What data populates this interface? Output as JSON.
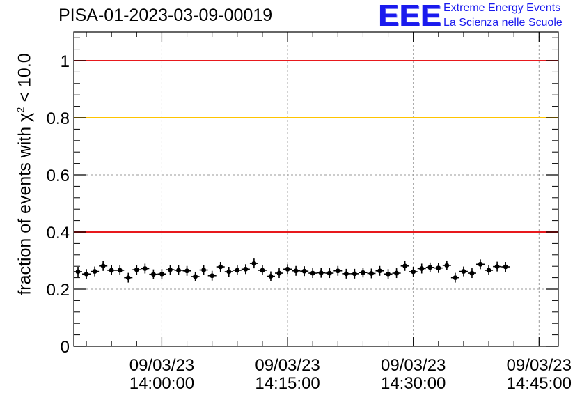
{
  "header": {
    "title": "PISA-01-2023-03-09-00019",
    "logo_mark": "EEE",
    "logo_line1": "Extreme Energy Events",
    "logo_line2": "La Scienza nelle Scuole"
  },
  "axis": {
    "ylabel_pre": "fraction of events with χ",
    "ylabel_sup": "2",
    "ylabel_post": " < 10.0"
  },
  "colors": {
    "threshold_red": "#e8191d",
    "threshold_yellow": "#ffc400",
    "points": "#000000",
    "grid": "#9a9a9a"
  },
  "chart_data": {
    "type": "scatter",
    "title": "PISA-01-2023-03-09-00019",
    "ylabel": "fraction of events with χ² < 10.0",
    "ylim": [
      0,
      1.1
    ],
    "y_ticks": [
      {
        "value": 0,
        "label": "0"
      },
      {
        "value": 0.2,
        "label": "0.2"
      },
      {
        "value": 0.4,
        "label": "0.4"
      },
      {
        "value": 0.6,
        "label": "0.6"
      },
      {
        "value": 0.8,
        "label": "0.8"
      },
      {
        "value": 1.0,
        "label": "1"
      }
    ],
    "xlim_minutes_after_1400": [
      -10.5,
      47.3
    ],
    "x_ticks": [
      {
        "minute": 0,
        "date": "09/03/23",
        "time": "14:00:00"
      },
      {
        "minute": 15,
        "date": "09/03/23",
        "time": "14:15:00"
      },
      {
        "minute": 30,
        "date": "09/03/23",
        "time": "14:30:00"
      },
      {
        "minute": 45,
        "date": "09/03/23",
        "time": "14:45:00"
      }
    ],
    "grid": true,
    "thresholds": [
      {
        "value": 1.0,
        "color": "red"
      },
      {
        "value": 0.8,
        "color": "yellow"
      },
      {
        "value": 0.4,
        "color": "red"
      }
    ],
    "point_interval_minutes": 1,
    "first_point_minute": -10,
    "values": [
      0.261,
      0.253,
      0.262,
      0.281,
      0.266,
      0.266,
      0.24,
      0.268,
      0.272,
      0.252,
      0.253,
      0.268,
      0.266,
      0.264,
      0.244,
      0.267,
      0.247,
      0.278,
      0.261,
      0.266,
      0.27,
      0.29,
      0.266,
      0.245,
      0.256,
      0.27,
      0.264,
      0.263,
      0.256,
      0.257,
      0.256,
      0.264,
      0.254,
      0.254,
      0.258,
      0.255,
      0.264,
      0.253,
      0.256,
      0.281,
      0.261,
      0.272,
      0.276,
      0.274,
      0.283,
      0.24,
      0.262,
      0.256,
      0.287,
      0.266,
      0.279,
      0.278
    ]
  }
}
